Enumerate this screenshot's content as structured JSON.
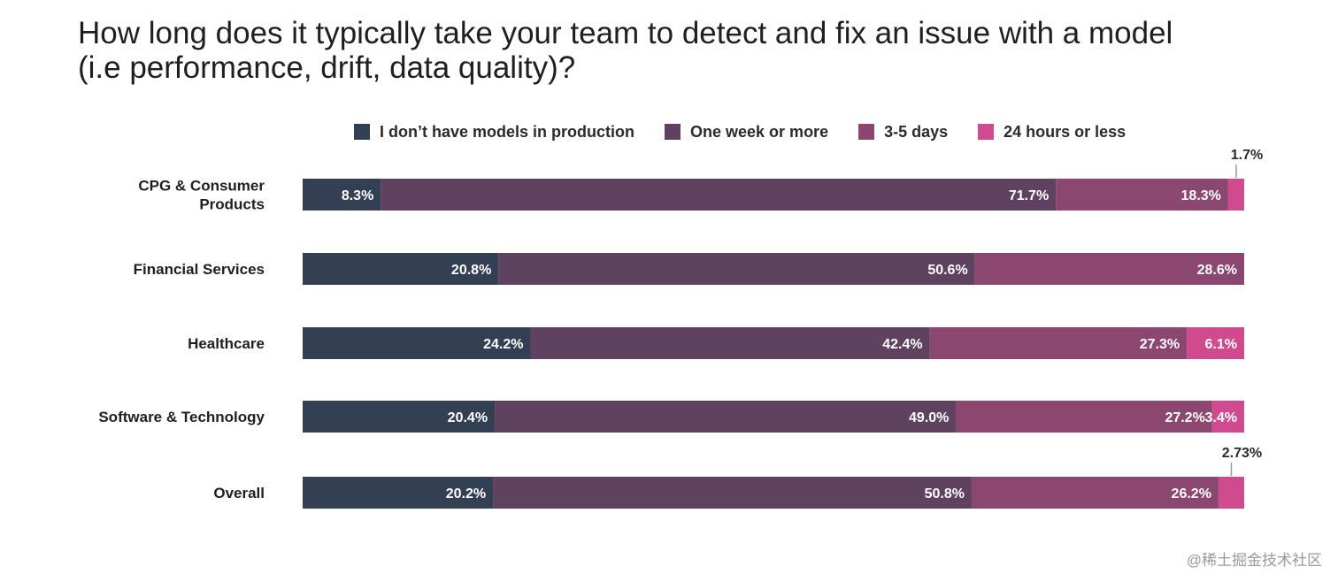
{
  "title_lines": [
    "How long does it typically take your team to detect and fix an issue with a model",
    "(i.e performance, drift, data quality)?"
  ],
  "watermark": "@稀土掘金技术社区",
  "colors": [
    "#333f52",
    "#5f4260",
    "#8c4770",
    "#cf4a8f"
  ],
  "chart_data": {
    "type": "bar",
    "orientation": "horizontal",
    "stacked": true,
    "title": "How long does it typically take your team to detect and fix an issue with a model (i.e performance, drift, data quality)?",
    "legend_position": "top",
    "categories": [
      "CPG & Consumer Products",
      "Financial Services",
      "Healthcare",
      "Software & Technology",
      "Overall"
    ],
    "category_label_lines": [
      [
        "CPG & Consumer",
        "Products"
      ],
      [
        "Financial Services"
      ],
      [
        "Healthcare"
      ],
      [
        "Software & Technology"
      ],
      [
        "Overall"
      ]
    ],
    "series": [
      {
        "name": "I don’t have models in production",
        "values": [
          8.3,
          20.8,
          24.2,
          20.4,
          20.2
        ],
        "labels": [
          "8.3%",
          "20.8%",
          "24.2%",
          "20.4%",
          "20.2%"
        ]
      },
      {
        "name": "One week or more",
        "values": [
          71.7,
          50.6,
          42.4,
          49.0,
          50.8
        ],
        "labels": [
          "71.7%",
          "50.6%",
          "42.4%",
          "49.0%",
          "50.8%"
        ]
      },
      {
        "name": "3-5 days",
        "values": [
          18.3,
          28.6,
          27.3,
          27.2,
          26.2
        ],
        "labels": [
          "18.3%",
          "28.6%",
          "27.3%",
          "27.2%",
          "26.2%"
        ]
      },
      {
        "name": "24 hours or less",
        "values": [
          1.7,
          0,
          6.1,
          3.4,
          2.73
        ],
        "labels": [
          "1.7%",
          "",
          "6.1%",
          "3.4%",
          "2.73%"
        ]
      }
    ],
    "xlim": [
      0,
      100
    ],
    "grid": false
  }
}
